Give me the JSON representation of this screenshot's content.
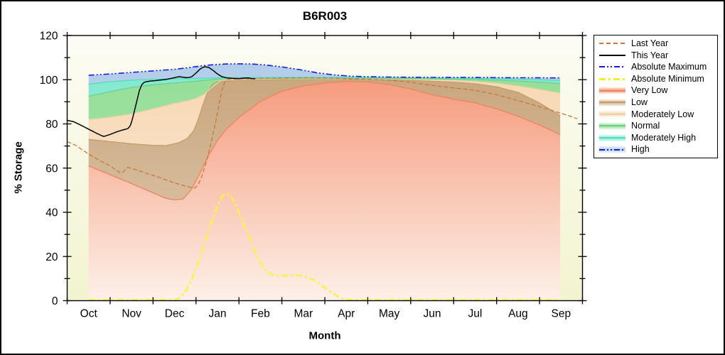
{
  "chart_data": {
    "type": "area",
    "title": "B6R003",
    "xlabel": "Month",
    "ylabel": "% Storage",
    "ylim": [
      0,
      120
    ],
    "y_tick_step": 20,
    "y_minor_step": 10,
    "months": [
      "Oct",
      "Nov",
      "Dec",
      "Jan",
      "Feb",
      "Mar",
      "Apr",
      "May",
      "Jun",
      "Jul",
      "Aug",
      "Sep"
    ],
    "grid": false,
    "legend_position": "outside-right",
    "note_units": "x in months from start of Oct (0=Oct 1, 0.5=mid Oct ... 11.5=mid Sep); y in % storage",
    "boundaries": {
      "very_low_top": [
        [
          0.5,
          61
        ],
        [
          1,
          57
        ],
        [
          1.5,
          53
        ],
        [
          2,
          48.8
        ],
        [
          2.3,
          46.3
        ],
        [
          2.5,
          45.6
        ],
        [
          2.7,
          46
        ],
        [
          2.9,
          50.5
        ],
        [
          3.1,
          58
        ],
        [
          3.3,
          66
        ],
        [
          3.5,
          72.5
        ],
        [
          3.7,
          77.5
        ],
        [
          4,
          82.9
        ],
        [
          4.5,
          90.2
        ],
        [
          5,
          94.8
        ],
        [
          5.5,
          97.2
        ],
        [
          6,
          98.5
        ],
        [
          6.5,
          99.2
        ],
        [
          7,
          99
        ],
        [
          7.5,
          97.8
        ],
        [
          8,
          95.8
        ],
        [
          8.5,
          93.2
        ],
        [
          9,
          91.2
        ],
        [
          9.5,
          89.5
        ],
        [
          10,
          86.8
        ],
        [
          10.5,
          83.5
        ],
        [
          11,
          79.5
        ],
        [
          11.5,
          75
        ]
      ],
      "low_top": [
        [
          0.5,
          73
        ],
        [
          1,
          72
        ],
        [
          1.5,
          71
        ],
        [
          2,
          70.3
        ],
        [
          2.3,
          70.2
        ],
        [
          2.6,
          71.5
        ],
        [
          2.8,
          73.5
        ],
        [
          2.95,
          77
        ],
        [
          3.05,
          82
        ],
        [
          3.15,
          88
        ],
        [
          3.25,
          93.5
        ],
        [
          3.35,
          97
        ],
        [
          3.45,
          98.7
        ],
        [
          3.6,
          99.3
        ],
        [
          4,
          99.7
        ],
        [
          4.5,
          99.9
        ],
        [
          5,
          100
        ],
        [
          5.5,
          100.1
        ],
        [
          6,
          100.15
        ],
        [
          6.5,
          100.2
        ],
        [
          7,
          100.1
        ],
        [
          7.5,
          99.9
        ],
        [
          8,
          99.7
        ],
        [
          8.5,
          99.3
        ],
        [
          9,
          98.9
        ],
        [
          9.5,
          98.2
        ],
        [
          10,
          96.8
        ],
        [
          10.5,
          94.3
        ],
        [
          11,
          89.5
        ],
        [
          11.5,
          83.5
        ]
      ],
      "mod_low_top": [
        [
          0.5,
          82
        ],
        [
          1,
          83
        ],
        [
          1.5,
          84.5
        ],
        [
          2,
          86.8
        ],
        [
          2.5,
          89.3
        ],
        [
          2.8,
          90.5
        ],
        [
          3,
          91.5
        ],
        [
          3.2,
          93.5
        ],
        [
          3.4,
          97
        ],
        [
          3.6,
          99.8
        ],
        [
          3.8,
          100.2
        ],
        [
          4.5,
          100.4
        ],
        [
          5.5,
          100.45
        ],
        [
          6.5,
          100.45
        ],
        [
          7.5,
          100.3
        ],
        [
          8,
          100.2
        ],
        [
          8.5,
          100
        ],
        [
          9,
          99.7
        ],
        [
          9.5,
          99.2
        ],
        [
          10,
          98.4
        ],
        [
          10.5,
          97.1
        ],
        [
          11,
          95.6
        ],
        [
          11.5,
          93.8
        ]
      ],
      "normal_top": [
        [
          0.5,
          92.5
        ],
        [
          1,
          94.6
        ],
        [
          1.5,
          96.5
        ],
        [
          2,
          97.7
        ],
        [
          2.5,
          98.5
        ],
        [
          3,
          99.3
        ],
        [
          3.5,
          100.3
        ],
        [
          4,
          100.5
        ],
        [
          5,
          100.65
        ],
        [
          6,
          100.7
        ],
        [
          7,
          100.65
        ],
        [
          8,
          100.5
        ],
        [
          8.5,
          100.4
        ],
        [
          9,
          100.25
        ],
        [
          9.5,
          100.1
        ],
        [
          10,
          99.8
        ],
        [
          10.5,
          99.4
        ],
        [
          11,
          98.9
        ],
        [
          11.5,
          98.2
        ]
      ],
      "mod_high_top": [
        [
          0.5,
          98
        ],
        [
          1,
          99.1
        ],
        [
          1.5,
          99.8
        ],
        [
          2,
          100.2
        ],
        [
          2.5,
          100.4
        ],
        [
          3,
          100.6
        ],
        [
          3.5,
          100.85
        ],
        [
          4,
          100.95
        ],
        [
          5,
          101.05
        ],
        [
          6,
          101.05
        ],
        [
          7,
          101
        ],
        [
          8,
          100.9
        ],
        [
          9,
          100.7
        ],
        [
          9.5,
          100.6
        ],
        [
          10,
          100.45
        ],
        [
          10.5,
          100.25
        ],
        [
          11,
          100
        ],
        [
          11.5,
          99.6
        ]
      ],
      "absolute_maximum": [
        [
          0.5,
          102
        ],
        [
          1,
          102.6
        ],
        [
          1.5,
          103.3
        ],
        [
          2,
          104
        ],
        [
          2.5,
          104.7
        ],
        [
          2.8,
          105.4
        ],
        [
          3.1,
          106.2
        ],
        [
          3.4,
          106.8
        ],
        [
          3.7,
          107.1
        ],
        [
          4,
          107.2
        ],
        [
          4.3,
          107.1
        ],
        [
          4.6,
          106.7
        ],
        [
          5,
          105.8
        ],
        [
          5.4,
          104.6
        ],
        [
          5.8,
          103.2
        ],
        [
          6.2,
          102.2
        ],
        [
          6.6,
          101.6
        ],
        [
          7,
          101.35
        ],
        [
          7.5,
          101.2
        ],
        [
          8,
          101.1
        ],
        [
          8.5,
          101.05
        ],
        [
          9,
          101
        ],
        [
          9.5,
          101
        ],
        [
          10,
          100.95
        ],
        [
          10.5,
          100.9
        ],
        [
          11,
          100.85
        ],
        [
          11.5,
          100.8
        ]
      ]
    },
    "bands": [
      {
        "label": "Very Low",
        "lower": "zero",
        "upper": "very_low_top",
        "fill_top": "#F48A68",
        "fill_bottom": "#FDF0E8",
        "edge": "#EF8260"
      },
      {
        "label": "Low",
        "lower": "very_low_top",
        "upper": "low_top",
        "fill_top": "#C49F74",
        "fill_bottom": "#E2CDB4",
        "edge": "#C29E6F"
      },
      {
        "label": "Moderately Low",
        "lower": "low_top",
        "upper": "mod_low_top",
        "fill_top": "#F7D5AE",
        "fill_bottom": "#FBEAD8",
        "edge": "#ECD1A5"
      },
      {
        "label": "Normal",
        "lower": "mod_low_top",
        "upper": "normal_top",
        "fill_top": "#8FDC93",
        "fill_bottom": "#B4ECB6",
        "edge": "#6FCF89"
      },
      {
        "label": "Moderately High",
        "lower": "normal_top",
        "upper": "mod_high_top",
        "fill_top": "#79E7CC",
        "fill_bottom": "#B2F3E4",
        "edge": "#5BDABD"
      },
      {
        "label": "High",
        "lower": "mod_high_top",
        "upper": "absolute_maximum",
        "fill_top": "#AFCBE9",
        "fill_bottom": "#CBDDF1",
        "edge": "none"
      }
    ],
    "lines": [
      {
        "label": "Absolute Maximum",
        "key": "absolute_maximum",
        "color": "#1B1BD1",
        "width": 1.6,
        "dash": "8 3 2 3 2 3"
      },
      {
        "label": "Absolute Minimum",
        "color": "#FAF53C",
        "width": 2.6,
        "dash": "9 4 3 4",
        "points": [
          [
            0.5,
            0.4
          ],
          [
            1.5,
            0.4
          ],
          [
            2.5,
            0.4
          ],
          [
            2.6,
            1
          ],
          [
            2.75,
            4
          ],
          [
            2.9,
            9.5
          ],
          [
            3.05,
            17
          ],
          [
            3.2,
            26
          ],
          [
            3.35,
            35
          ],
          [
            3.5,
            43
          ],
          [
            3.6,
            47
          ],
          [
            3.7,
            48.8
          ],
          [
            3.8,
            47.5
          ],
          [
            3.9,
            44.5
          ],
          [
            4,
            40
          ],
          [
            4.15,
            33
          ],
          [
            4.3,
            26
          ],
          [
            4.45,
            19
          ],
          [
            4.6,
            14
          ],
          [
            4.75,
            12
          ],
          [
            4.9,
            11.2
          ],
          [
            5.1,
            11.3
          ],
          [
            5.3,
            11.6
          ],
          [
            5.5,
            11.2
          ],
          [
            5.7,
            9.8
          ],
          [
            5.9,
            7.5
          ],
          [
            6.1,
            4.5
          ],
          [
            6.3,
            2
          ],
          [
            6.45,
            0.6
          ],
          [
            6.6,
            0.4
          ],
          [
            7.5,
            0.4
          ],
          [
            8.5,
            0.4
          ],
          [
            9.5,
            0.4
          ],
          [
            10.5,
            0.4
          ],
          [
            11.5,
            0.4
          ]
        ]
      },
      {
        "label": "Last Year",
        "color": "#C5793B",
        "width": 1.3,
        "dash": "6 3",
        "points": [
          [
            0,
            72
          ],
          [
            0.2,
            70.3
          ],
          [
            0.5,
            66.3
          ],
          [
            0.8,
            63
          ],
          [
            1,
            61
          ],
          [
            1.15,
            59
          ],
          [
            1.25,
            57.7
          ],
          [
            1.32,
            58.5
          ],
          [
            1.4,
            60.4
          ],
          [
            1.5,
            59.9
          ],
          [
            1.7,
            58.6
          ],
          [
            1.9,
            57.3
          ],
          [
            2.1,
            56.1
          ],
          [
            2.3,
            54.7
          ],
          [
            2.5,
            53.3
          ],
          [
            2.7,
            52.2
          ],
          [
            2.85,
            51.4
          ],
          [
            2.97,
            51
          ],
          [
            3.05,
            52.5
          ],
          [
            3.15,
            57
          ],
          [
            3.25,
            63.5
          ],
          [
            3.35,
            71.5
          ],
          [
            3.45,
            80
          ],
          [
            3.53,
            88
          ],
          [
            3.6,
            95
          ],
          [
            3.67,
            99
          ],
          [
            3.75,
            100.2
          ],
          [
            4,
            100.4
          ],
          [
            4.5,
            100.6
          ],
          [
            5,
            100.8
          ],
          [
            5.5,
            100.9
          ],
          [
            6,
            100.8
          ],
          [
            6.5,
            100.5
          ],
          [
            7,
            100.2
          ],
          [
            7.5,
            99.8
          ],
          [
            8,
            98.9
          ],
          [
            8.5,
            97.4
          ],
          [
            9,
            96.3
          ],
          [
            9.5,
            95.2
          ],
          [
            10,
            93.2
          ],
          [
            10.5,
            90.6
          ],
          [
            11,
            87.8
          ],
          [
            11.5,
            84.8
          ],
          [
            11.7,
            83.6
          ],
          [
            11.88,
            82.3
          ]
        ]
      },
      {
        "label": "This Year",
        "color": "#000000",
        "width": 1.5,
        "dash": "",
        "points": [
          [
            0,
            81.6
          ],
          [
            0.15,
            81
          ],
          [
            0.3,
            79.6
          ],
          [
            0.5,
            77.6
          ],
          [
            0.7,
            75.6
          ],
          [
            0.85,
            74.3
          ],
          [
            1,
            75.2
          ],
          [
            1.15,
            76.4
          ],
          [
            1.3,
            77.3
          ],
          [
            1.42,
            77.9
          ],
          [
            1.48,
            79.5
          ],
          [
            1.53,
            83
          ],
          [
            1.58,
            87
          ],
          [
            1.63,
            91
          ],
          [
            1.68,
            95
          ],
          [
            1.74,
            97.8
          ],
          [
            1.8,
            98.9
          ],
          [
            1.9,
            99.3
          ],
          [
            2.1,
            99.7
          ],
          [
            2.3,
            100.1
          ],
          [
            2.5,
            100.9
          ],
          [
            2.6,
            101.4
          ],
          [
            2.7,
            101.1
          ],
          [
            2.8,
            100.9
          ],
          [
            2.9,
            101.3
          ],
          [
            3,
            103
          ],
          [
            3.1,
            104.9
          ],
          [
            3.2,
            105.9
          ],
          [
            3.3,
            105.5
          ],
          [
            3.4,
            104.2
          ],
          [
            3.5,
            102.6
          ],
          [
            3.6,
            101.4
          ],
          [
            3.7,
            100.9
          ],
          [
            3.85,
            100.6
          ],
          [
            4,
            100.5
          ],
          [
            4.1,
            100.7
          ],
          [
            4.2,
            100.8
          ],
          [
            4.3,
            100.5
          ],
          [
            4.4,
            100.4
          ]
        ]
      }
    ],
    "plot_background": {
      "top": "#FCFCF4",
      "bottom": "#F2F4D0"
    }
  },
  "legend": {
    "items": [
      {
        "label": "Last Year",
        "swatch": "line",
        "color": "#C5793B",
        "pattern": "dash"
      },
      {
        "label": "This Year",
        "swatch": "line",
        "color": "#000000",
        "pattern": "solid"
      },
      {
        "label": "Absolute Maximum",
        "swatch": "line",
        "color": "#1B1BD1",
        "pattern": "dashdotdot"
      },
      {
        "label": "Absolute Minimum",
        "swatch": "line",
        "color": "#F2EC38",
        "pattern": "thickdashdot"
      },
      {
        "label": "Very Low",
        "swatch": "band",
        "fill": "#F9AC8E",
        "line": "#EF8260",
        "pattern": "solid"
      },
      {
        "label": "Low",
        "swatch": "band",
        "fill": "#D9BF9F",
        "line": "#C29E6F",
        "pattern": "solid"
      },
      {
        "label": "Moderately Low",
        "swatch": "band",
        "fill": "#FAE2C6",
        "line": "#ECD1A5",
        "pattern": "solid"
      },
      {
        "label": "Normal",
        "swatch": "band",
        "fill": "#A2E5A6",
        "line": "#6FCF89",
        "pattern": "solid"
      },
      {
        "label": "Moderately High",
        "swatch": "band",
        "fill": "#90EDD9",
        "line": "#5BDABD",
        "pattern": "solid"
      },
      {
        "label": "High",
        "swatch": "band",
        "fill": "#BDD4EC",
        "line": "#1B1BD1",
        "pattern": "dashdotdot"
      }
    ]
  }
}
